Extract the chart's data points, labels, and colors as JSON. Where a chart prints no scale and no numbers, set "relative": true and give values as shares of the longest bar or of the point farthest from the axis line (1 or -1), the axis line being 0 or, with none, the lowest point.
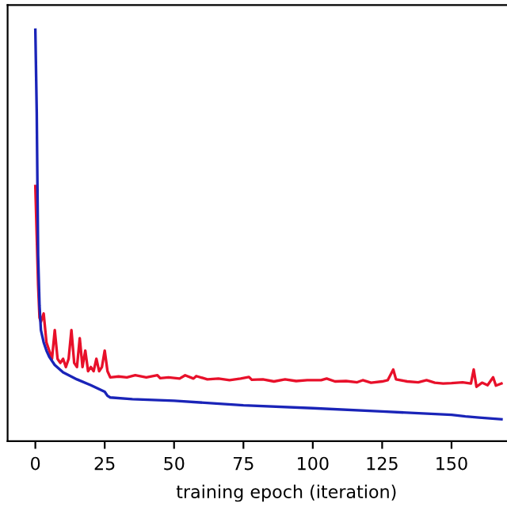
{
  "chart_data": {
    "type": "line",
    "relative": true,
    "xlabel": "training epoch (iteration)",
    "xlim": [
      -10,
      170
    ],
    "xticks": [
      0,
      25,
      50,
      75,
      100,
      125,
      150
    ],
    "grid": false,
    "marker": "none",
    "line_style": "solid",
    "series": [
      {
        "color": "#e8102a",
        "x": [
          0,
          0.5,
          1,
          1.5,
          2,
          3,
          4,
          5,
          6,
          7,
          8,
          9,
          10,
          11,
          12,
          13,
          14,
          15,
          16,
          17,
          18,
          19,
          20,
          21,
          22,
          23,
          24,
          25,
          26,
          27,
          30,
          33,
          36,
          40,
          44,
          45,
          48,
          52,
          54,
          57,
          58,
          62,
          66,
          70,
          74,
          77,
          78,
          82,
          86,
          90,
          94,
          98,
          103,
          105,
          108,
          112,
          116,
          118,
          121,
          125,
          127,
          129,
          130,
          134,
          138,
          141,
          144,
          147,
          150,
          154,
          157,
          158,
          159,
          161,
          163,
          165,
          166,
          168
        ],
        "values": [
          0.62,
          0.5,
          0.38,
          0.3,
          0.29,
          0.31,
          0.24,
          0.22,
          0.2,
          0.27,
          0.2,
          0.19,
          0.2,
          0.18,
          0.2,
          0.27,
          0.19,
          0.18,
          0.25,
          0.18,
          0.22,
          0.17,
          0.18,
          0.17,
          0.2,
          0.17,
          0.18,
          0.22,
          0.17,
          0.155,
          0.157,
          0.155,
          0.16,
          0.155,
          0.16,
          0.153,
          0.155,
          0.152,
          0.16,
          0.152,
          0.158,
          0.15,
          0.152,
          0.148,
          0.152,
          0.156,
          0.149,
          0.15,
          0.145,
          0.15,
          0.146,
          0.148,
          0.148,
          0.152,
          0.145,
          0.146,
          0.143,
          0.148,
          0.142,
          0.145,
          0.148,
          0.174,
          0.15,
          0.145,
          0.143,
          0.148,
          0.142,
          0.14,
          0.141,
          0.143,
          0.14,
          0.174,
          0.132,
          0.142,
          0.136,
          0.155,
          0.135,
          0.14
        ]
      },
      {
        "color": "#1a24b8",
        "x": [
          0,
          0.5,
          1,
          1.5,
          2,
          3,
          4,
          5,
          7,
          10,
          15,
          20,
          25,
          26,
          27,
          35,
          50,
          75,
          100,
          125,
          150,
          155,
          160,
          168
        ],
        "values": [
          1.0,
          0.8,
          0.45,
          0.33,
          0.27,
          0.24,
          0.22,
          0.205,
          0.185,
          0.167,
          0.15,
          0.136,
          0.12,
          0.11,
          0.106,
          0.102,
          0.098,
          0.087,
          0.08,
          0.072,
          0.064,
          0.06,
          0.057,
          0.053
        ]
      }
    ]
  }
}
